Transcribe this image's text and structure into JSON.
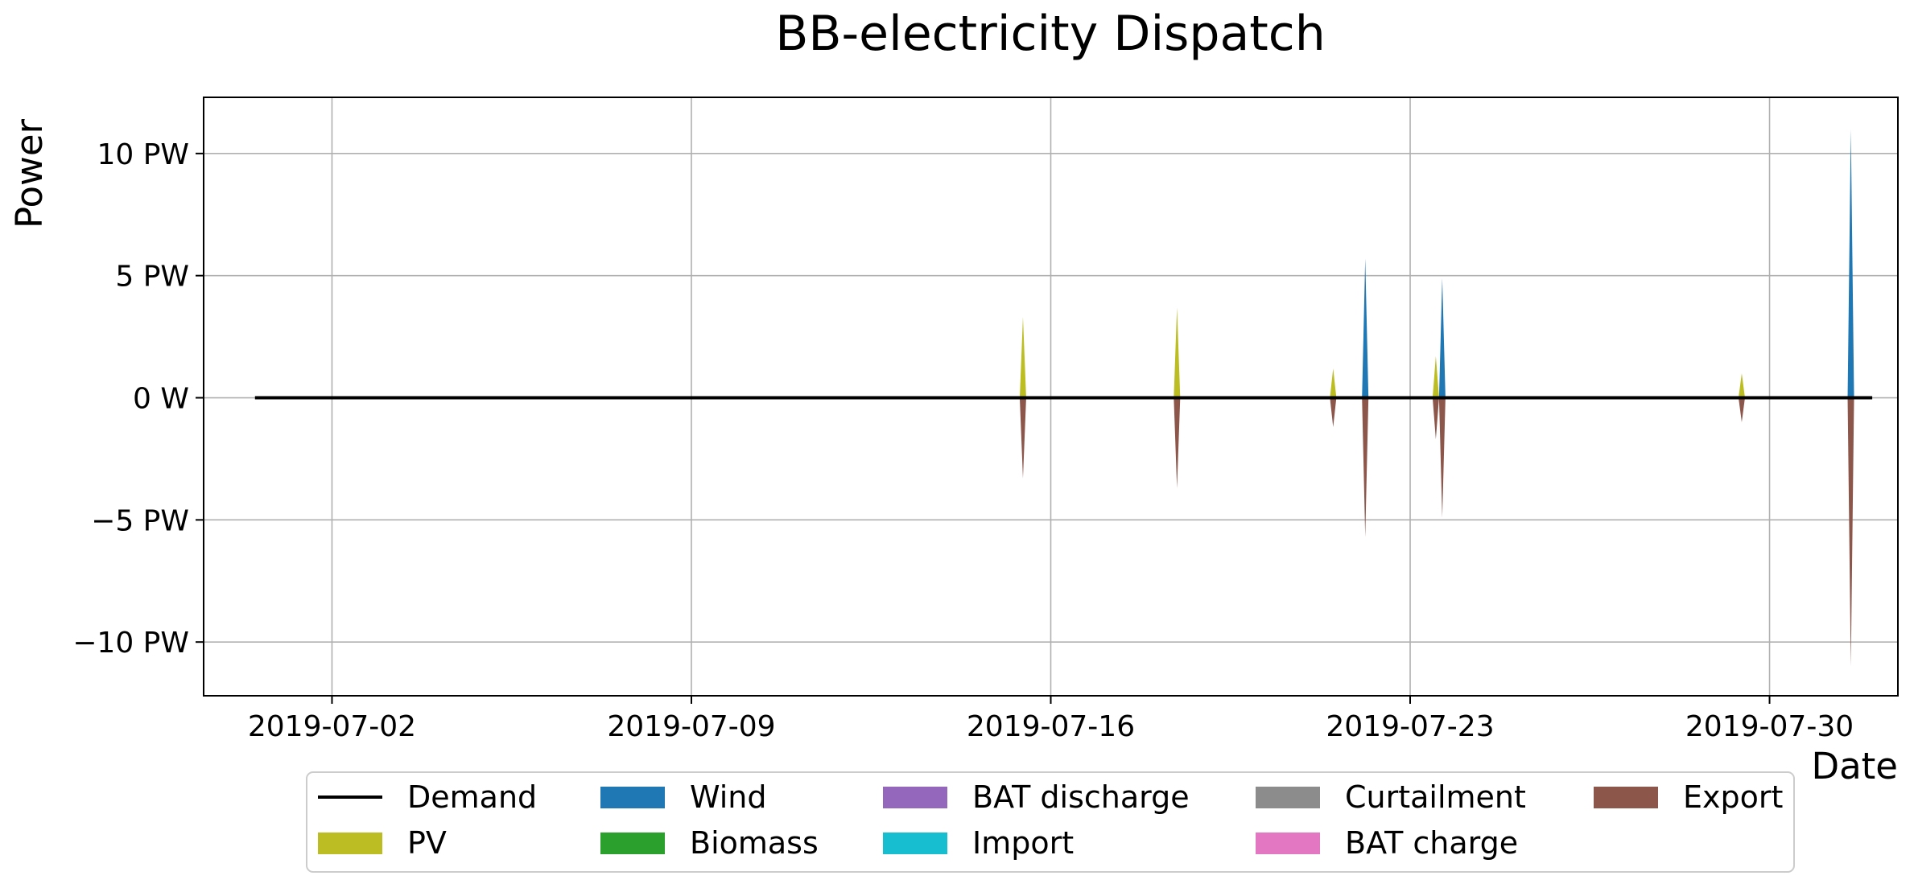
{
  "chart_data": {
    "type": "area",
    "title": "BB-electricity Dispatch",
    "xlabel": "Date",
    "ylabel": "Power",
    "grid": true,
    "legend_position": "bottom-center",
    "xlim": [
      "2019-06-29T12:00",
      "2019-08-01T12:00"
    ],
    "ylim": [
      -12.2,
      12.3
    ],
    "y_unit": "PW",
    "x_ticks": [
      "2019-07-02",
      "2019-07-09",
      "2019-07-16",
      "2019-07-23",
      "2019-07-30"
    ],
    "y_ticks": [
      {
        "value": 10,
        "label": "10 PW"
      },
      {
        "value": 5,
        "label": "5 PW"
      },
      {
        "value": 0,
        "label": "0 W"
      },
      {
        "value": -5,
        "label": "−5 PW"
      },
      {
        "value": -10,
        "label": "−10 PW"
      }
    ],
    "legend": [
      "Demand",
      "PV",
      "Wind",
      "Biomass",
      "BAT discharge",
      "Import",
      "Curtailment",
      "BAT charge",
      "Export"
    ],
    "colors": {
      "Demand": "#000000",
      "PV": "#bcbd22",
      "Wind": "#1f77b4",
      "Biomass": "#2ca02c",
      "BAT discharge": "#9467bd",
      "Import": "#17becf",
      "Curtailment": "#8c8c8c",
      "BAT charge": "#e377c2",
      "Export": "#8c564b"
    },
    "demand": {
      "start": "2019-06-30T12:00",
      "end": "2019-08-01T00:00",
      "value": 0
    },
    "spikes": [
      {
        "time": "2019-07-15T11:00",
        "PV": 3.3,
        "Wind": 0,
        "Export": -3.3
      },
      {
        "time": "2019-07-18T11:00",
        "PV": 3.7,
        "Wind": 0,
        "Export": -3.7
      },
      {
        "time": "2019-07-21T12:00",
        "PV": 1.2,
        "Wind": 0,
        "Export": -1.2
      },
      {
        "time": "2019-07-22T03:00",
        "PV": 0,
        "Wind": 5.7,
        "Export": -5.7
      },
      {
        "time": "2019-07-23T12:00",
        "PV": 1.7,
        "Wind": 0,
        "Export": -1.7
      },
      {
        "time": "2019-07-23T15:00",
        "PV": 0,
        "Wind": 4.9,
        "Export": -4.9
      },
      {
        "time": "2019-07-29T11:00",
        "PV": 1.0,
        "Wind": 0,
        "Export": -1.0
      },
      {
        "time": "2019-07-31T14:00",
        "PV": 0,
        "Wind": 11.0,
        "Export": -11.0
      }
    ]
  }
}
